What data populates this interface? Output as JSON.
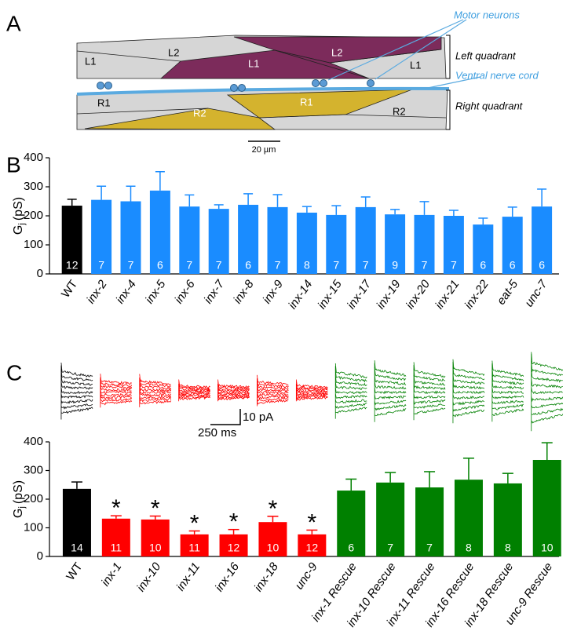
{
  "panel_labels": [
    "A",
    "B",
    "C"
  ],
  "diagram": {
    "muscle_labels": [
      "L1",
      "L2",
      "L1",
      "L2",
      "L1",
      "R1",
      "R2",
      "R1",
      "R2"
    ],
    "motor_neurons": "Motor neurons",
    "left_quadrant": "Left quadrant",
    "ventral_nerve_cord": "Ventral nerve cord",
    "right_quadrant": "Right quadrant",
    "scale_bar": "20 µm"
  },
  "traces": {
    "current_scale": "10 pA",
    "time_scale": "250 ms"
  },
  "chart_data": [
    {
      "type": "bar",
      "ylabel": {
        "symbol": "G",
        "subscript": "j",
        "unit": "(pS)"
      },
      "categories": [
        "WT",
        "inx-2",
        "inx-4",
        "inx-5",
        "inx-6",
        "inx-7",
        "inx-8",
        "inx-9",
        "inx-14",
        "inx-15",
        "inx-17",
        "inx-19",
        "inx-20",
        "inx-21",
        "inx-22",
        "eat-5",
        "unc-7"
      ],
      "values": [
        235,
        255,
        250,
        287,
        232,
        224,
        238,
        230,
        211,
        203,
        230,
        205,
        203,
        200,
        170,
        197,
        232
      ],
      "errors": [
        22,
        47,
        52,
        65,
        40,
        14,
        38,
        43,
        21,
        32,
        35,
        17,
        46,
        19,
        22,
        33,
        60
      ],
      "n": [
        12,
        7,
        7,
        6,
        7,
        7,
        6,
        7,
        8,
        7,
        7,
        9,
        7,
        7,
        6,
        6,
        6
      ],
      "colors": [
        "#000000",
        "#1a8cff",
        "#1a8cff",
        "#1a8cff",
        "#1a8cff",
        "#1a8cff",
        "#1a8cff",
        "#1a8cff",
        "#1a8cff",
        "#1a8cff",
        "#1a8cff",
        "#1a8cff",
        "#1a8cff",
        "#1a8cff",
        "#1a8cff",
        "#1a8cff",
        "#1a8cff"
      ],
      "ylim": [
        0,
        400
      ],
      "yticks": [
        0,
        100,
        200,
        300,
        400
      ],
      "grid": false
    },
    {
      "type": "bar",
      "ylabel": {
        "symbol": "G",
        "subscript": "j",
        "unit": "(pS)"
      },
      "categories": [
        "WT",
        "inx-1",
        "inx-10",
        "inx-11",
        "inx-16",
        "inx-18",
        "unc-9",
        "inx-1 Rescue",
        "inx-10 Rescue",
        "inx-11 Rescue",
        "inx-16 Rescue",
        "inx-18 Rescue",
        "unc-9 Rescue"
      ],
      "values": [
        236,
        132,
        129,
        77,
        77,
        120,
        77,
        230,
        258,
        241,
        268,
        255,
        337
      ],
      "errors": [
        24,
        10,
        12,
        12,
        17,
        20,
        15,
        40,
        35,
        55,
        75,
        35,
        60
      ],
      "n": [
        14,
        11,
        10,
        11,
        12,
        10,
        12,
        6,
        7,
        7,
        8,
        8,
        10
      ],
      "markers": [
        null,
        "*",
        "*",
        "*",
        "*",
        "*",
        "*",
        null,
        null,
        null,
        null,
        null,
        null
      ],
      "colors": [
        "#000000",
        "#ff0000",
        "#ff0000",
        "#ff0000",
        "#ff0000",
        "#ff0000",
        "#ff0000",
        "#008000",
        "#008000",
        "#008000",
        "#008000",
        "#008000",
        "#008000"
      ],
      "ylim": [
        0,
        400
      ],
      "yticks": [
        0,
        100,
        200,
        300,
        400
      ],
      "grid": false
    }
  ]
}
